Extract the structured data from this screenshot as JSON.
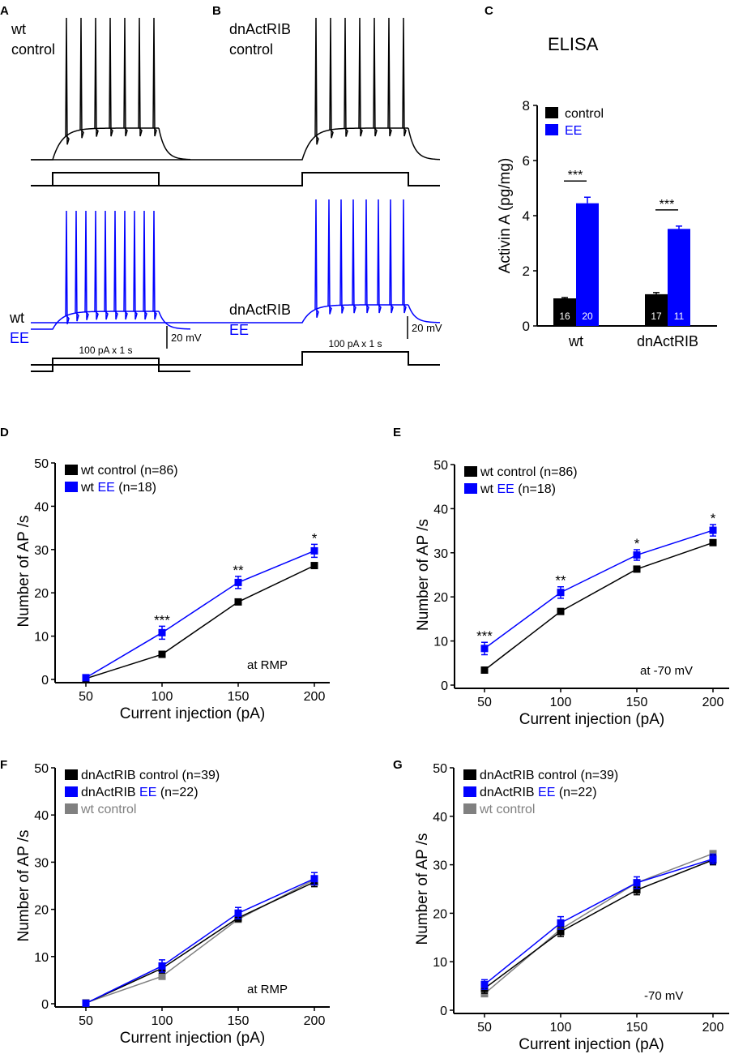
{
  "colors": {
    "control": "#000000",
    "EE": "#0000ff",
    "wt_control": "#808080"
  },
  "panel_labels": [
    "A",
    "B",
    "C",
    "D",
    "E",
    "F",
    "G"
  ],
  "traces": {
    "A": {
      "control_label": [
        "wt",
        "control"
      ],
      "EE_label": [
        "wt",
        "EE"
      ],
      "control_spikes": 7,
      "EE_spikes": 10,
      "stimulus_label": "100 pA x 1 s",
      "scale_label": "20 mV"
    },
    "B": {
      "control_label": [
        "dnActRIB",
        "control"
      ],
      "EE_label": [
        "dnActRIB",
        "EE"
      ],
      "control_spikes": 7,
      "EE_spikes": 8,
      "stimulus_label": "100 pA x 1 s",
      "scale_label": "20 mV"
    }
  },
  "chart_data": [
    {
      "panel": "C",
      "type": "bar",
      "title": "ELISA",
      "ylabel": "Activin A (pg/mg)",
      "ylim": [
        0,
        8
      ],
      "yticks": [
        "0",
        "2",
        "4",
        "6",
        "8"
      ],
      "categories": [
        "wt",
        "dnActRIB"
      ],
      "legend": {
        "placement": "top-left",
        "entries": [
          "control",
          "EE"
        ]
      },
      "series": [
        {
          "name": "control",
          "values": [
            1.0,
            1.15
          ],
          "errors": [
            0.03,
            0.06
          ],
          "n": [
            "16",
            "17"
          ]
        },
        {
          "name": "EE",
          "values": [
            4.45,
            3.52
          ],
          "errors": [
            0.22,
            0.1
          ],
          "n": [
            "20",
            "11"
          ]
        }
      ],
      "significance": [
        "***",
        "***"
      ]
    },
    {
      "panel": "D",
      "type": "line",
      "xlabel": "Current injection (pA)",
      "ylabel": "Number of AP /s",
      "x": [
        50,
        100,
        150,
        200
      ],
      "xticks": [
        "50",
        "100",
        "150",
        "200"
      ],
      "yticks": [
        "0",
        "10",
        "20",
        "30",
        "40",
        "50"
      ],
      "ylim": [
        0,
        50
      ],
      "annotation": "at RMP",
      "legend": {
        "placement": "top-left",
        "entries": [
          [
            "wt control (n=86)"
          ],
          [
            "wt ",
            "EE",
            " (n=18)"
          ]
        ]
      },
      "series": [
        {
          "name": "wt control (n=86)",
          "color": "control",
          "values": [
            0.2,
            5.8,
            17.9,
            26.3
          ],
          "errors": [
            0.2,
            0.5,
            0.5,
            0.6
          ]
        },
        {
          "name": "wt EE (n=18)",
          "color": "EE",
          "values": [
            0.4,
            10.8,
            22.4,
            29.7
          ],
          "errors": [
            0.4,
            1.5,
            1.4,
            1.5
          ]
        }
      ],
      "significance": [
        "",
        "***",
        "**",
        "*"
      ]
    },
    {
      "panel": "E",
      "type": "line",
      "xlabel": "Current injection (pA)",
      "ylabel": "Number of AP /s",
      "x": [
        50,
        100,
        150,
        200
      ],
      "xticks": [
        "50",
        "100",
        "150",
        "200"
      ],
      "yticks": [
        "0",
        "10",
        "20",
        "30",
        "40",
        "50"
      ],
      "ylim": [
        0,
        50
      ],
      "annotation": "at -70 mV",
      "legend": {
        "placement": "top-left",
        "entries": [
          [
            "wt control (n=86)"
          ],
          [
            "wt ",
            "EE",
            " (n=18)"
          ]
        ]
      },
      "series": [
        {
          "name": "wt control (n=86)",
          "color": "control",
          "values": [
            3.4,
            16.7,
            26.3,
            32.3
          ],
          "errors": [
            0.4,
            0.5,
            0.5,
            0.5
          ]
        },
        {
          "name": "wt EE (n=18)",
          "color": "EE",
          "values": [
            8.3,
            21.0,
            29.5,
            35.1
          ],
          "errors": [
            1.4,
            1.3,
            1.2,
            1.3
          ]
        }
      ],
      "significance": [
        "***",
        "**",
        "*",
        "*"
      ]
    },
    {
      "panel": "F",
      "type": "line",
      "xlabel": "Current injection (pA)",
      "ylabel": "Number of AP /s",
      "x": [
        50,
        100,
        150,
        200
      ],
      "xticks": [
        "50",
        "100",
        "150",
        "200"
      ],
      "yticks": [
        "0",
        "10",
        "20",
        "30",
        "40",
        "50"
      ],
      "ylim": [
        0,
        50
      ],
      "annotation": "at RMP",
      "legend": {
        "placement": "top-left",
        "entries": [
          [
            "dnActRIB control (n=39)"
          ],
          [
            "dnActRIB ",
            "EE",
            " (n=22)"
          ],
          [
            "wt control"
          ]
        ]
      },
      "series": [
        {
          "name": "wt control",
          "color": "wt_control",
          "values": [
            0.2,
            5.8,
            17.9,
            26.3
          ],
          "errors": [
            0.2,
            0.5,
            0.5,
            0.6
          ]
        },
        {
          "name": "dnActRIB control (n=39)",
          "color": "control",
          "values": [
            0.1,
            7.5,
            18.2,
            25.8
          ],
          "errors": [
            0.1,
            1.0,
            0.8,
            1.0
          ]
        },
        {
          "name": "dnActRIB EE (n=22)",
          "color": "EE",
          "values": [
            0.1,
            8.0,
            19.2,
            26.5
          ],
          "errors": [
            0.1,
            1.3,
            1.2,
            1.3
          ]
        }
      ],
      "significance": [
        "",
        "",
        "",
        ""
      ]
    },
    {
      "panel": "G",
      "type": "line",
      "xlabel": "Current injection (pA)",
      "ylabel": "Number of AP /s",
      "x": [
        50,
        100,
        150,
        200
      ],
      "xticks": [
        "50",
        "100",
        "150",
        "200"
      ],
      "yticks": [
        "0",
        "10",
        "20",
        "30",
        "40",
        "50"
      ],
      "ylim": [
        0,
        50
      ],
      "annotation": "-70 mV",
      "legend": {
        "placement": "top-left",
        "entries": [
          [
            "dnActRIB control (n=39)"
          ],
          [
            "dnActRIB ",
            "EE",
            " (n=22)"
          ],
          [
            "wt control"
          ]
        ]
      },
      "series": [
        {
          "name": "wt control",
          "color": "wt_control",
          "values": [
            3.4,
            16.7,
            26.3,
            32.3
          ],
          "errors": [
            0.4,
            0.5,
            0.5,
            0.5
          ]
        },
        {
          "name": "dnActRIB control (n=39)",
          "color": "control",
          "values": [
            4.5,
            16.2,
            24.8,
            31.0
          ],
          "errors": [
            1.0,
            1.0,
            1.0,
            1.0
          ]
        },
        {
          "name": "dnActRIB EE (n=22)",
          "color": "EE",
          "values": [
            5.3,
            18.0,
            26.3,
            31.2
          ],
          "errors": [
            1.0,
            1.3,
            1.2,
            1.0
          ]
        }
      ],
      "significance": [
        "",
        "",
        "",
        ""
      ]
    }
  ]
}
